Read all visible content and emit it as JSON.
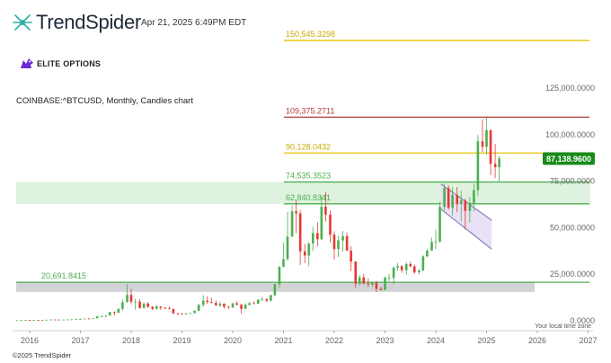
{
  "header": {
    "brand": "TrendSpider",
    "brand_icon": "trendspider-logo-icon",
    "timestamp": "Apr 21, 2025 6:49PM EDT",
    "partner": "ELITE OPTIONS",
    "partner_icon": "elite-options-logo-icon",
    "instrument": "COINBASE:^BTCUSD, Monthly, Candles chart"
  },
  "footer": {
    "copyright": "©2025 TrendSpider"
  },
  "colors": {
    "up": "#4caf50",
    "down": "#e53935",
    "gold": "#e6c200",
    "red_level": "#b23a3a",
    "green_level": "#4caf50",
    "zone_fill": "#dff2df",
    "gray_zone": "#d3d3d7",
    "channel_fill": "#e5dcf3",
    "channel_stroke": "#8b7fbf",
    "price_badge": "#1a8a1a"
  },
  "chart_data": {
    "type": "candlestick",
    "timeframe": "Monthly",
    "x_ticks": [
      "2016",
      "2017",
      "2018",
      "2019",
      "2020",
      "2021",
      "2022",
      "2023",
      "2024",
      "2025",
      "2026",
      "2027"
    ],
    "y_ticks": [
      "0.0000",
      "25,000.0000",
      "50,000.0000",
      "75,000.0000",
      "100,000.0000",
      "125,000.0000"
    ],
    "ylim": [
      -3000,
      160000
    ],
    "xlim": [
      2015.75,
      2027.3
    ],
    "time_zone_note": "Your local time zone",
    "current_price": {
      "value": 87138.96,
      "label": "87,138.9600"
    },
    "levels": [
      {
        "value": 150545.3298,
        "label": "150,545.3298",
        "color": "gold"
      },
      {
        "value": 109375.2711,
        "label": "109,375.2711",
        "color": "red_level"
      },
      {
        "value": 90128.0432,
        "label": "90,128.0432",
        "color": "gold"
      },
      {
        "value": 74535.3523,
        "label": "74,535.3523",
        "color": "green_level"
      },
      {
        "value": 62840.8341,
        "label": "62,840.8341",
        "color": "green_level"
      },
      {
        "value": 20691.8415,
        "label": "20,691.8415",
        "color": "green_level"
      }
    ],
    "zones": [
      {
        "low": 62840.8341,
        "high": 74535.3523,
        "color": "zone_fill"
      },
      {
        "low": 15500,
        "high": 20691.8415,
        "color": "gray_zone",
        "x_end": 2025.95
      }
    ],
    "channel": {
      "upper": [
        [
          2024.1,
          73500
        ],
        [
          2025.1,
          54000
        ]
      ],
      "lower": [
        [
          2024.1,
          60000
        ],
        [
          2025.1,
          38500
        ]
      ]
    },
    "candles": [
      [
        2015.75,
        240,
        270,
        230,
        260
      ],
      [
        2015.83,
        260,
        390,
        250,
        380
      ],
      [
        2015.92,
        380,
        465,
        350,
        430
      ],
      [
        2016.0,
        430,
        440,
        360,
        370
      ],
      [
        2016.08,
        370,
        440,
        370,
        440
      ],
      [
        2016.17,
        440,
        440,
        400,
        415
      ],
      [
        2016.25,
        415,
        470,
        410,
        448
      ],
      [
        2016.33,
        448,
        560,
        440,
        530
      ],
      [
        2016.42,
        530,
        780,
        520,
        670
      ],
      [
        2016.5,
        670,
        700,
        600,
        625
      ],
      [
        2016.58,
        625,
        630,
        560,
        575
      ],
      [
        2016.67,
        575,
        620,
        570,
        610
      ],
      [
        2016.75,
        610,
        720,
        600,
        700
      ],
      [
        2016.83,
        700,
        750,
        690,
        745
      ],
      [
        2016.92,
        745,
        980,
        745,
        960
      ],
      [
        2017.0,
        960,
        1150,
        750,
        970
      ],
      [
        2017.08,
        970,
        1200,
        900,
        1190
      ],
      [
        2017.17,
        1190,
        1300,
        890,
        1080
      ],
      [
        2017.25,
        1080,
        1400,
        1080,
        1350
      ],
      [
        2017.33,
        1350,
        2700,
        1350,
        2300
      ],
      [
        2017.42,
        2300,
        3000,
        2100,
        2480
      ],
      [
        2017.5,
        2480,
        2950,
        1800,
        2870
      ],
      [
        2017.58,
        2870,
        4800,
        2700,
        4700
      ],
      [
        2017.67,
        4700,
        5000,
        2900,
        4340
      ],
      [
        2017.75,
        4340,
        6400,
        4200,
        6450
      ],
      [
        2017.83,
        6450,
        11400,
        5500,
        10000
      ],
      [
        2017.92,
        10000,
        19700,
        9800,
        13900
      ],
      [
        2018.0,
        13900,
        17200,
        9000,
        10200
      ],
      [
        2018.08,
        10200,
        11800,
        6000,
        10300
      ],
      [
        2018.17,
        10300,
        11600,
        6500,
        6900
      ],
      [
        2018.25,
        6900,
        9900,
        6500,
        9250
      ],
      [
        2018.33,
        9250,
        10000,
        7000,
        7500
      ],
      [
        2018.42,
        7500,
        7800,
        5800,
        6400
      ],
      [
        2018.5,
        6400,
        8500,
        6100,
        7700
      ],
      [
        2018.58,
        7700,
        7800,
        5900,
        7000
      ],
      [
        2018.67,
        7000,
        7400,
        6100,
        6600
      ],
      [
        2018.75,
        6600,
        7600,
        6200,
        6300
      ],
      [
        2018.83,
        6300,
        6500,
        3600,
        4000
      ],
      [
        2018.92,
        4000,
        4200,
        3100,
        3700
      ],
      [
        2019.0,
        3700,
        4100,
        3400,
        3450
      ],
      [
        2019.08,
        3450,
        4200,
        3400,
        3850
      ],
      [
        2019.17,
        3850,
        4100,
        3700,
        4100
      ],
      [
        2019.25,
        4100,
        5600,
        4050,
        5350
      ],
      [
        2019.33,
        5350,
        9000,
        5300,
        8550
      ],
      [
        2019.42,
        8550,
        13800,
        7500,
        10800
      ],
      [
        2019.5,
        10800,
        13200,
        9000,
        10100
      ],
      [
        2019.58,
        10100,
        12300,
        9400,
        9600
      ],
      [
        2019.67,
        9600,
        10900,
        7900,
        8300
      ],
      [
        2019.75,
        8300,
        10400,
        7300,
        9150
      ],
      [
        2019.83,
        9150,
        9400,
        6500,
        7550
      ],
      [
        2019.92,
        7550,
        7800,
        6400,
        7200
      ],
      [
        2020.0,
        7200,
        9600,
        6900,
        9350
      ],
      [
        2020.08,
        9350,
        10500,
        8500,
        8550
      ],
      [
        2020.17,
        8550,
        9200,
        3800,
        6450
      ],
      [
        2020.25,
        6450,
        9500,
        6150,
        8650
      ],
      [
        2020.33,
        8650,
        10000,
        8100,
        9450
      ],
      [
        2020.42,
        9450,
        10400,
        8900,
        9150
      ],
      [
        2020.5,
        9150,
        11400,
        8900,
        11350
      ],
      [
        2020.58,
        11350,
        12500,
        10600,
        11650
      ],
      [
        2020.67,
        11650,
        12100,
        9900,
        10800
      ],
      [
        2020.75,
        10800,
        14000,
        10400,
        13800
      ],
      [
        2020.83,
        13800,
        19800,
        13200,
        19700
      ],
      [
        2020.92,
        19700,
        29300,
        17600,
        29000
      ],
      [
        2021.0,
        29000,
        42000,
        28700,
        33100
      ],
      [
        2021.08,
        33100,
        58400,
        32300,
        45200
      ],
      [
        2021.17,
        45200,
        61800,
        45000,
        58800
      ],
      [
        2021.25,
        58800,
        64800,
        47000,
        57700
      ],
      [
        2021.33,
        57700,
        59500,
        30000,
        37300
      ],
      [
        2021.42,
        37300,
        41300,
        31000,
        35000
      ],
      [
        2021.5,
        35000,
        42300,
        29300,
        41500
      ],
      [
        2021.58,
        41500,
        50500,
        37400,
        47100
      ],
      [
        2021.67,
        47100,
        52900,
        40000,
        43800
      ],
      [
        2021.75,
        43800,
        66900,
        43300,
        61300
      ],
      [
        2021.83,
        61300,
        69000,
        53300,
        57000
      ],
      [
        2021.92,
        57000,
        59100,
        42000,
        46200
      ],
      [
        2022.0,
        46200,
        48000,
        33000,
        38500
      ],
      [
        2022.08,
        38500,
        45800,
        34300,
        43200
      ],
      [
        2022.17,
        43200,
        48200,
        37200,
        45500
      ],
      [
        2022.25,
        45500,
        47400,
        37600,
        37700
      ],
      [
        2022.33,
        37700,
        40000,
        26700,
        31800
      ],
      [
        2022.42,
        31800,
        31900,
        17600,
        19900
      ],
      [
        2022.5,
        19900,
        24600,
        18800,
        23300
      ],
      [
        2022.58,
        23300,
        25200,
        19600,
        20000
      ],
      [
        2022.67,
        20000,
        22800,
        18200,
        19400
      ],
      [
        2022.75,
        19400,
        21000,
        18200,
        20500
      ],
      [
        2022.83,
        20500,
        21400,
        15500,
        17200
      ],
      [
        2022.92,
        17200,
        18400,
        16300,
        16500
      ],
      [
        2023.0,
        16500,
        23900,
        16500,
        23100
      ],
      [
        2023.08,
        23100,
        25200,
        21400,
        23100
      ],
      [
        2023.17,
        23100,
        29200,
        19600,
        28500
      ],
      [
        2023.25,
        28500,
        31000,
        26900,
        29300
      ],
      [
        2023.33,
        29300,
        29800,
        25800,
        27200
      ],
      [
        2023.42,
        27200,
        31400,
        24800,
        30500
      ],
      [
        2023.5,
        30500,
        31800,
        28900,
        29200
      ],
      [
        2023.58,
        29200,
        30200,
        25300,
        26000
      ],
      [
        2023.67,
        26000,
        27500,
        24900,
        27000
      ],
      [
        2023.75,
        27000,
        35200,
        26600,
        34600
      ],
      [
        2023.83,
        34600,
        38400,
        34100,
        37700
      ],
      [
        2023.92,
        37700,
        44700,
        37600,
        42300
      ],
      [
        2024.0,
        42300,
        48900,
        38500,
        42600
      ],
      [
        2024.08,
        42600,
        64000,
        41900,
        61200
      ],
      [
        2024.17,
        61200,
        73800,
        59200,
        71300
      ],
      [
        2024.25,
        71300,
        72800,
        59600,
        60700
      ],
      [
        2024.33,
        60700,
        71900,
        56500,
        67500
      ],
      [
        2024.42,
        67500,
        71900,
        58400,
        62700
      ],
      [
        2024.5,
        62700,
        70000,
        53500,
        64600
      ],
      [
        2024.58,
        64600,
        65600,
        49000,
        59000
      ],
      [
        2024.67,
        59000,
        66500,
        52600,
        63300
      ],
      [
        2024.75,
        63300,
        73600,
        58900,
        70200
      ],
      [
        2024.83,
        70200,
        99800,
        66800,
        96400
      ],
      [
        2024.92,
        96400,
        108300,
        90700,
        93400
      ],
      [
        2025.0,
        93400,
        109300,
        89200,
        102400
      ],
      [
        2025.08,
        102400,
        102700,
        78200,
        84300
      ],
      [
        2025.17,
        84300,
        95000,
        76600,
        82500
      ],
      [
        2025.25,
        82500,
        88500,
        74500,
        87100
      ]
    ]
  }
}
